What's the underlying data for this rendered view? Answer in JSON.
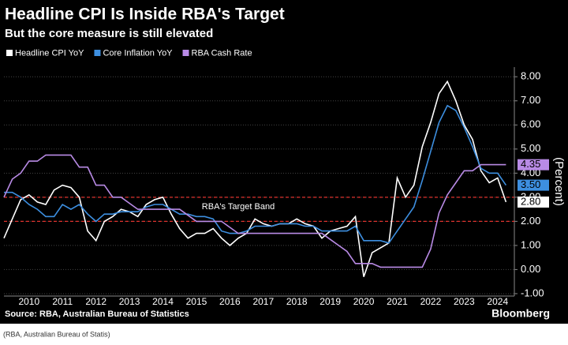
{
  "chart_data": {
    "type": "line",
    "title": "Headline CPI Is Inside RBA's Target",
    "subtitle": "But the core measure is still elevated",
    "y_label": "(Percent)",
    "source": "Source: RBA, Australian Bureau of Statistics",
    "brand": "Bloomberg",
    "caption": "(RBA, Australian Bureau of Statis)",
    "annotation": "RBA's Target Band",
    "target_band": [
      2,
      3
    ],
    "target_band_color": "#e0322d",
    "grid": true,
    "xlim": [
      2009.75,
      2025
    ],
    "ylim": [
      -1.1,
      8.4
    ],
    "xticks": [
      {
        "value": 2010.5,
        "label": "2010"
      },
      {
        "value": 2011.5,
        "label": "2011"
      },
      {
        "value": 2012.5,
        "label": "2012"
      },
      {
        "value": 2013.5,
        "label": "2013"
      },
      {
        "value": 2014.5,
        "label": "2014"
      },
      {
        "value": 2015.5,
        "label": "2015"
      },
      {
        "value": 2016.5,
        "label": "2016"
      },
      {
        "value": 2017.5,
        "label": "2017"
      },
      {
        "value": 2018.5,
        "label": "2018"
      },
      {
        "value": 2019.5,
        "label": "2019"
      },
      {
        "value": 2020.5,
        "label": "2020"
      },
      {
        "value": 2021.5,
        "label": "2021"
      },
      {
        "value": 2022.5,
        "label": "2022"
      },
      {
        "value": 2023.5,
        "label": "2023"
      },
      {
        "value": 2024.5,
        "label": "2024"
      }
    ],
    "yticks": [
      {
        "value": 8,
        "label": "8.00"
      },
      {
        "value": 7,
        "label": "7.00"
      },
      {
        "value": 6,
        "label": "6.00"
      },
      {
        "value": 5,
        "label": "5.00"
      },
      {
        "value": 4,
        "label": "4.00"
      },
      {
        "value": 3,
        "label": "3.00"
      },
      {
        "value": 2,
        "label": "2.00"
      },
      {
        "value": 1,
        "label": "1.00"
      },
      {
        "value": 0,
        "label": "0.00"
      },
      {
        "value": -1,
        "label": "-1.00"
      }
    ],
    "x": [
      2009.75,
      2010,
      2010.25,
      2010.5,
      2010.75,
      2011,
      2011.25,
      2011.5,
      2011.75,
      2012,
      2012.25,
      2012.5,
      2012.75,
      2013,
      2013.25,
      2013.5,
      2013.75,
      2014,
      2014.25,
      2014.5,
      2014.75,
      2015,
      2015.25,
      2015.5,
      2015.75,
      2016,
      2016.25,
      2016.5,
      2016.75,
      2017,
      2017.25,
      2017.5,
      2017.75,
      2018,
      2018.25,
      2018.5,
      2018.75,
      2019,
      2019.25,
      2019.5,
      2019.75,
      2020,
      2020.25,
      2020.5,
      2020.75,
      2021,
      2021.25,
      2021.5,
      2021.75,
      2022,
      2022.25,
      2022.5,
      2022.75,
      2023,
      2023.25,
      2023.5,
      2023.75,
      2024,
      2024.25,
      2024.5,
      2024.75
    ],
    "series": [
      {
        "name": "Headline CPI YoY",
        "color": "#ffffff",
        "values": [
          1.3,
          2.1,
          2.9,
          3.1,
          2.8,
          2.7,
          3.3,
          3.5,
          3.4,
          3.0,
          1.6,
          1.2,
          2.0,
          2.2,
          2.5,
          2.4,
          2.2,
          2.7,
          2.9,
          3.0,
          2.3,
          1.7,
          1.3,
          1.5,
          1.5,
          1.7,
          1.3,
          1.0,
          1.3,
          1.5,
          2.1,
          1.9,
          1.8,
          1.9,
          1.9,
          2.1,
          1.9,
          1.8,
          1.3,
          1.6,
          1.7,
          1.8,
          2.2,
          -0.3,
          0.7,
          0.9,
          1.1,
          3.8,
          3.0,
          3.5,
          5.1,
          6.1,
          7.3,
          7.8,
          7.0,
          6.0,
          5.4,
          4.1,
          3.6,
          3.8,
          2.8
        ],
        "value_labels": [
          null,
          null,
          null,
          null,
          null,
          null,
          null,
          null,
          null,
          null,
          null,
          null,
          null,
          null,
          null,
          null,
          null,
          null,
          null,
          null,
          null,
          null,
          null,
          null,
          null,
          null,
          null,
          null,
          null,
          null,
          null,
          null,
          null,
          null,
          null,
          null,
          null,
          null,
          null,
          null,
          null,
          null,
          null,
          null,
          null,
          null,
          null,
          null,
          null,
          null,
          null,
          null,
          null,
          null,
          null,
          null,
          null,
          null,
          null,
          null,
          "2.80"
        ]
      },
      {
        "name": "Core Inflation YoY",
        "color": "#3d8fe0",
        "values": [
          3.2,
          3.2,
          3.0,
          2.7,
          2.5,
          2.2,
          2.2,
          2.7,
          2.5,
          2.7,
          2.3,
          2.0,
          2.3,
          2.3,
          2.4,
          2.4,
          2.4,
          2.6,
          2.7,
          2.7,
          2.5,
          2.3,
          2.3,
          2.2,
          2.2,
          2.1,
          1.6,
          1.5,
          1.5,
          1.6,
          1.8,
          1.8,
          1.8,
          1.9,
          1.9,
          1.9,
          1.8,
          1.8,
          1.6,
          1.6,
          1.6,
          1.6,
          1.8,
          1.2,
          1.2,
          1.2,
          1.1,
          1.6,
          2.1,
          2.6,
          3.7,
          4.9,
          6.1,
          6.8,
          6.6,
          5.9,
          5.1,
          4.2,
          4.0,
          4.0,
          3.5
        ],
        "value_labels": [
          null,
          null,
          null,
          null,
          null,
          null,
          null,
          null,
          null,
          null,
          null,
          null,
          null,
          null,
          null,
          null,
          null,
          null,
          null,
          null,
          null,
          null,
          null,
          null,
          null,
          null,
          null,
          null,
          null,
          null,
          null,
          null,
          null,
          null,
          null,
          null,
          null,
          null,
          null,
          null,
          null,
          null,
          null,
          null,
          null,
          null,
          null,
          null,
          null,
          null,
          null,
          null,
          null,
          null,
          null,
          null,
          null,
          null,
          null,
          null,
          "3.50"
        ]
      },
      {
        "name": "RBA Cash Rate",
        "color": "#b98be6",
        "values": [
          3.0,
          3.75,
          4.0,
          4.5,
          4.5,
          4.75,
          4.75,
          4.75,
          4.75,
          4.25,
          4.25,
          3.5,
          3.5,
          3.0,
          3.0,
          2.75,
          2.5,
          2.5,
          2.5,
          2.5,
          2.5,
          2.5,
          2.25,
          2.0,
          2.0,
          2.0,
          2.0,
          1.75,
          1.5,
          1.5,
          1.5,
          1.5,
          1.5,
          1.5,
          1.5,
          1.5,
          1.5,
          1.5,
          1.5,
          1.25,
          1.0,
          0.75,
          0.25,
          0.25,
          0.25,
          0.1,
          0.1,
          0.1,
          0.1,
          0.1,
          0.1,
          0.85,
          2.35,
          3.1,
          3.6,
          4.1,
          4.1,
          4.35,
          4.35,
          4.35,
          4.35
        ],
        "value_labels": [
          null,
          null,
          null,
          null,
          null,
          null,
          null,
          null,
          null,
          null,
          null,
          null,
          null,
          null,
          null,
          null,
          null,
          null,
          null,
          null,
          null,
          null,
          null,
          null,
          null,
          null,
          null,
          null,
          null,
          null,
          null,
          null,
          null,
          null,
          null,
          null,
          null,
          null,
          null,
          null,
          null,
          null,
          null,
          null,
          null,
          null,
          null,
          null,
          null,
          null,
          null,
          null,
          null,
          null,
          null,
          null,
          null,
          null,
          null,
          null,
          "4.35"
        ]
      }
    ]
  }
}
